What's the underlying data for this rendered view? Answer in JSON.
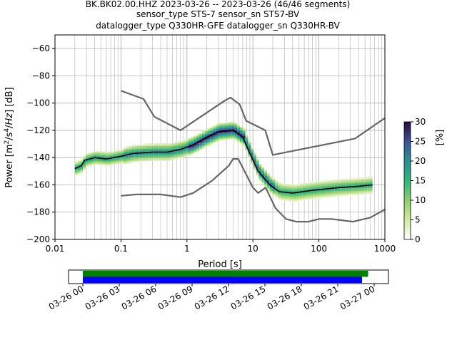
{
  "title_lines": [
    "BK.BK02.00.HHZ   2023-03-26 -- 2023-03-26  (46/46 segments)",
    "sensor_type STS-7 sensor_sn STS7-BV",
    "datalogger_type Q330HR-GFE datalogger_sn Q330HR-BV"
  ],
  "chart_data": [
    {
      "type": "heatmap",
      "xlabel": "Period [s]",
      "ylabel": "Power [m²/s⁴/Hz] [dB]",
      "xscale": "log",
      "xlim": [
        0.01,
        1000
      ],
      "ylim": [
        -200,
        -50
      ],
      "x_ticks": [
        0.01,
        0.1,
        1,
        10,
        100,
        1000
      ],
      "x_tick_labels": [
        "0.01",
        "0.1",
        "1",
        "10",
        "100",
        "1000"
      ],
      "y_ticks": [
        -60,
        -80,
        -100,
        -120,
        -140,
        -160,
        -180,
        -200
      ],
      "grid": true,
      "colormap": "cqt (white → light green → teal → dark purple)",
      "colorbar": {
        "label": "[%]",
        "ticks": [
          0,
          5,
          10,
          15,
          20,
          25,
          30
        ],
        "range": [
          0,
          30
        ]
      },
      "series": [
        {
          "name": "",
          "role": "noise model upper",
          "color": "#666666",
          "points": [
            [
              0.1,
              -91
            ],
            [
              0.22,
              -97
            ],
            [
              0.32,
              -110
            ],
            [
              0.8,
              -120
            ],
            [
              3.8,
              -98
            ],
            [
              4.6,
              -96
            ],
            [
              6.3,
              -101
            ],
            [
              7.9,
              -113
            ],
            [
              15.4,
              -120
            ],
            [
              20,
              -138
            ],
            [
              354.8,
              -126
            ],
            [
              1000,
              -111
            ]
          ]
        },
        {
          "name": "",
          "role": "noise model lower",
          "color": "#666666",
          "points": [
            [
              0.1,
              -168
            ],
            [
              0.17,
              -167
            ],
            [
              0.4,
              -167
            ],
            [
              0.8,
              -169
            ],
            [
              1.24,
              -166
            ],
            [
              2.4,
              -157
            ],
            [
              4.3,
              -146
            ],
            [
              5,
              -141
            ],
            [
              6,
              -141
            ],
            [
              10,
              -162
            ],
            [
              12,
              -166
            ],
            [
              15.6,
              -162
            ],
            [
              21.9,
              -177
            ],
            [
              31.6,
              -185
            ],
            [
              45,
              -187
            ],
            [
              70,
              -187
            ],
            [
              101,
              -185
            ],
            [
              154,
              -185
            ],
            [
              328,
              -187
            ],
            [
              600,
              -184
            ],
            [
              1000,
              -178
            ]
          ]
        },
        {
          "name": "",
          "role": "mode",
          "color": "#000000",
          "points": [
            [
              0.02,
              -148
            ],
            [
              0.025,
              -146
            ],
            [
              0.028,
              -142
            ],
            [
              0.04,
              -140
            ],
            [
              0.06,
              -141
            ],
            [
              0.1,
              -139
            ],
            [
              0.15,
              -137
            ],
            [
              0.3,
              -136
            ],
            [
              0.5,
              -136
            ],
            [
              0.8,
              -134
            ],
            [
              1.2,
              -131
            ],
            [
              2,
              -125
            ],
            [
              3,
              -121
            ],
            [
              5,
              -120
            ],
            [
              7,
              -125
            ],
            [
              9,
              -137
            ],
            [
              12,
              -150
            ],
            [
              18,
              -160
            ],
            [
              25,
              -165
            ],
            [
              40,
              -166
            ],
            [
              80,
              -164
            ],
            [
              200,
              -162
            ],
            [
              400,
              -161
            ],
            [
              650,
              -160
            ]
          ]
        }
      ],
      "heatmap_bands": [
        {
          "period_range": [
            0.02,
            0.1
          ],
          "db_range": [
            -152,
            -138
          ],
          "max_percent": 20
        },
        {
          "period_range": [
            0.1,
            1
          ],
          "db_range": [
            -148,
            -130
          ],
          "max_percent": 22
        },
        {
          "period_range": [
            1,
            7
          ],
          "db_range": [
            -138,
            -114
          ],
          "max_percent": 30
        },
        {
          "period_range": [
            7,
            20
          ],
          "db_range": [
            -164,
            -122
          ],
          "max_percent": 25
        },
        {
          "period_range": [
            20,
            650
          ],
          "db_range": [
            -180,
            -154
          ],
          "max_percent": 18
        }
      ]
    },
    {
      "type": "timeline",
      "x_tick_labels": [
        "03-26 00",
        "03-26 03",
        "03-26 06",
        "03-26 09",
        "03-26 12",
        "03-26 15",
        "03-26 18",
        "03-26 21",
        "03-27 00"
      ],
      "series": [
        {
          "name": "",
          "color": "#008000",
          "start_hour": 0,
          "end_hour": 23.5
        },
        {
          "name": "",
          "color": "#0000ff",
          "start_hour": 0,
          "end_hour": 23.0
        }
      ]
    }
  ]
}
